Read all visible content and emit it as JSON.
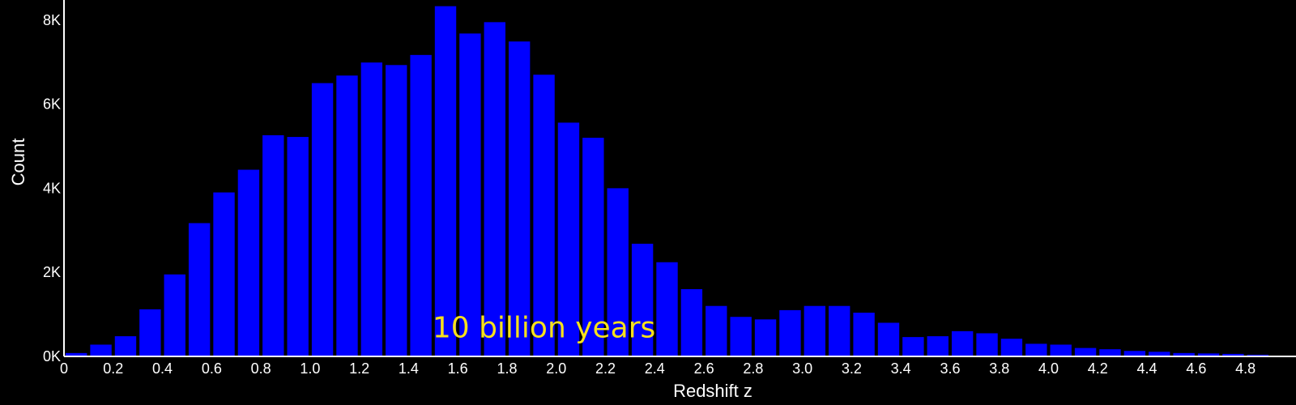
{
  "chart_data": {
    "type": "bar",
    "title": "",
    "xlabel": "Redshift z",
    "ylabel": "Count",
    "bin_width": 0.1,
    "bin_starts": [
      0,
      0.1,
      0.2,
      0.3,
      0.4,
      0.5,
      0.6,
      0.7,
      0.8,
      0.9,
      1.0,
      1.1,
      1.2,
      1.3,
      1.4,
      1.5,
      1.6,
      1.7,
      1.8,
      1.9,
      2.0,
      2.1,
      2.2,
      2.3,
      2.4,
      2.5,
      2.6,
      2.7,
      2.8,
      2.9,
      3.0,
      3.1,
      3.2,
      3.3,
      3.4,
      3.5,
      3.6,
      3.7,
      3.8,
      3.9,
      4.0,
      4.1,
      4.2,
      4.3,
      4.4,
      4.5,
      4.6,
      4.7,
      4.8
    ],
    "values": [
      80,
      280,
      480,
      1120,
      1950,
      3170,
      3900,
      4440,
      5260,
      5220,
      6500,
      6680,
      6990,
      6930,
      7170,
      8330,
      7680,
      7950,
      7490,
      6700,
      5560,
      5200,
      4000,
      2680,
      2240,
      1600,
      1200,
      940,
      880,
      1100,
      1200,
      1200,
      1040,
      800,
      460,
      480,
      600,
      550,
      420,
      300,
      280,
      200,
      170,
      130,
      110,
      80,
      70,
      60,
      40
    ],
    "xlim": [
      0,
      4.9
    ],
    "ylim": [
      0,
      8400
    ],
    "x_ticks": [
      0,
      0.2,
      0.4,
      0.6,
      0.8,
      1.0,
      1.2,
      1.4,
      1.6,
      1.8,
      2.0,
      2.2,
      2.4,
      2.6,
      2.8,
      3.0,
      3.2,
      3.4,
      3.6,
      3.8,
      4.0,
      4.2,
      4.4,
      4.6,
      4.8
    ],
    "x_tick_labels": [
      "0",
      "0.2",
      "0.4",
      "0.6",
      "0.8",
      "1.0",
      "1.2",
      "1.4",
      "1.6",
      "1.8",
      "2.0",
      "2.2",
      "2.4",
      "2.6",
      "2.8",
      "3.0",
      "3.2",
      "3.4",
      "3.6",
      "3.8",
      "4.0",
      "4.2",
      "4.4",
      "4.6",
      "4.8"
    ],
    "y_ticks": [
      0,
      2000,
      4000,
      6000,
      8000
    ],
    "y_tick_labels": [
      "0K",
      "2K",
      "4K",
      "6K",
      "8K"
    ],
    "grid": false,
    "annotation": {
      "text": "10 billion years",
      "x": 1.95,
      "y": 650
    },
    "colors": {
      "bar": "#0000ff",
      "background": "#000000",
      "axis": "#ffffff",
      "annotation": "#f7e11b"
    }
  }
}
